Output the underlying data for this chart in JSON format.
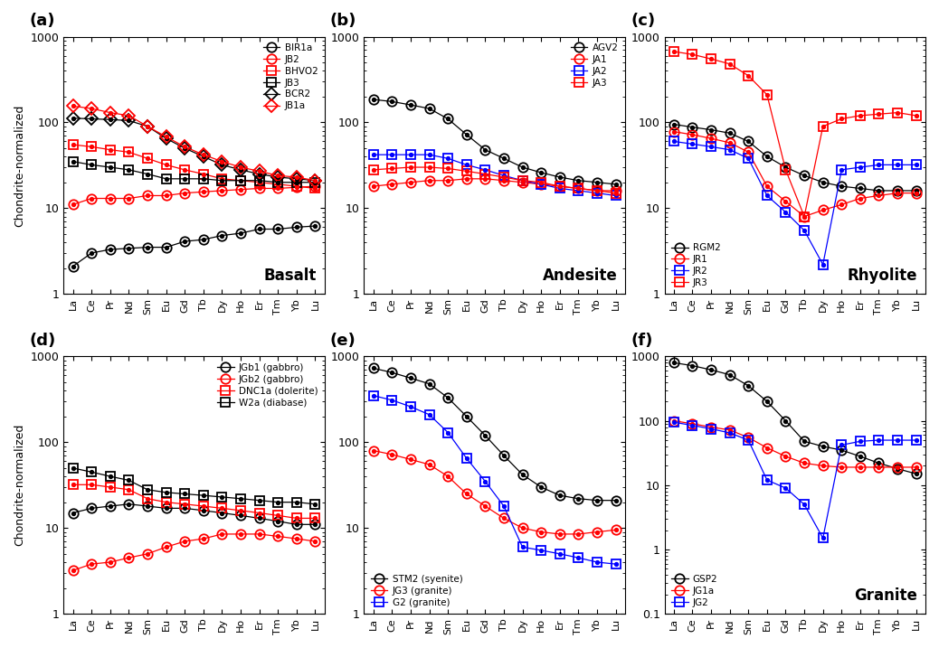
{
  "elements": [
    "La",
    "Ce",
    "Pr",
    "Nd",
    "Sm",
    "Eu",
    "Gd",
    "Tb",
    "Dy",
    "Ho",
    "Er",
    "Tm",
    "Yb",
    "Lu"
  ],
  "panels": {
    "a": {
      "title": "Basalt",
      "label": "(a)",
      "ylim": [
        1,
        1000
      ],
      "legend_loc": "upper right",
      "series": [
        {
          "name": "BIR1a",
          "color": "black",
          "marker": "o",
          "values": [
            2.1,
            3.0,
            3.3,
            3.4,
            3.5,
            3.5,
            4.1,
            4.3,
            4.8,
            5.1,
            5.7,
            5.7,
            6.0,
            6.2
          ]
        },
        {
          "name": "JB2",
          "color": "red",
          "marker": "o",
          "values": [
            11,
            13,
            13,
            13,
            14,
            14,
            15,
            15.5,
            16,
            16.5,
            17,
            17,
            17.5,
            18
          ]
        },
        {
          "name": "BHVO2",
          "color": "red",
          "marker": "s",
          "values": [
            55,
            52,
            48,
            45,
            38,
            32,
            28,
            25,
            22,
            21,
            20,
            19,
            18,
            17
          ]
        },
        {
          "name": "JB3",
          "color": "black",
          "marker": "s",
          "values": [
            35,
            32,
            30,
            28,
            25,
            22,
            22,
            22,
            21,
            21,
            21,
            20,
            20,
            20
          ]
        },
        {
          "name": "BCR2",
          "color": "black",
          "marker": "D",
          "values": [
            112,
            110,
            108,
            105,
            90,
            65,
            50,
            40,
            32,
            28,
            25,
            23,
            22,
            21
          ]
        },
        {
          "name": "JB1a",
          "color": "red",
          "marker": "D",
          "values": [
            155,
            145,
            130,
            120,
            90,
            68,
            52,
            42,
            35,
            30,
            27,
            24,
            23,
            21
          ]
        }
      ]
    },
    "b": {
      "title": "Andesite",
      "label": "(b)",
      "ylim": [
        1,
        1000
      ],
      "legend_loc": "upper right",
      "series": [
        {
          "name": "AGV2",
          "color": "black",
          "marker": "o",
          "values": [
            185,
            175,
            160,
            145,
            110,
            72,
            48,
            38,
            30,
            26,
            23,
            21,
            20,
            19
          ]
        },
        {
          "name": "JA1",
          "color": "red",
          "marker": "o",
          "values": [
            18,
            19,
            20,
            21,
            21,
            22,
            22,
            21,
            20,
            19,
            18,
            17,
            16,
            16
          ]
        },
        {
          "name": "JA2",
          "color": "blue",
          "marker": "s",
          "values": [
            42,
            42,
            42,
            42,
            38,
            32,
            28,
            24,
            21,
            19,
            17,
            16,
            15,
            14
          ]
        },
        {
          "name": "JA3",
          "color": "red",
          "marker": "s",
          "values": [
            28,
            29,
            30,
            30,
            29,
            27,
            25,
            23,
            21,
            20,
            18,
            17,
            16,
            15
          ]
        }
      ]
    },
    "c": {
      "title": "Rhyolite",
      "label": "(c)",
      "ylim": [
        1,
        1000
      ],
      "legend_loc": "lower left",
      "series": [
        {
          "name": "RGM2",
          "color": "black",
          "marker": "o",
          "values": [
            95,
            88,
            82,
            75,
            60,
            40,
            30,
            24,
            20,
            18,
            17,
            16,
            16,
            16
          ]
        },
        {
          "name": "JR1",
          "color": "red",
          "marker": "o",
          "values": [
            78,
            72,
            65,
            58,
            45,
            18,
            12,
            8.0,
            9.5,
            11,
            13,
            14,
            15,
            15
          ]
        },
        {
          "name": "JR2",
          "color": "blue",
          "marker": "s",
          "values": [
            60,
            56,
            52,
            48,
            38,
            14,
            9.0,
            5.5,
            2.2,
            28,
            30,
            32,
            32,
            32
          ]
        },
        {
          "name": "JR3",
          "color": "red",
          "marker": "s",
          "values": [
            670,
            620,
            550,
            480,
            350,
            210,
            28,
            8.0,
            90,
            110,
            120,
            125,
            130,
            120
          ]
        }
      ]
    },
    "d": {
      "title": null,
      "label": "(d)",
      "ylim": [
        1,
        1000
      ],
      "legend_loc": "upper right",
      "series": [
        {
          "name": "JGb1 (gabbro)",
          "color": "black",
          "marker": "o",
          "values": [
            15,
            17,
            18,
            19,
            18,
            17,
            17,
            16,
            15,
            14,
            13,
            12,
            11,
            11
          ]
        },
        {
          "name": "JGb2 (gabbro)",
          "color": "red",
          "marker": "o",
          "values": [
            3.2,
            3.8,
            4.0,
            4.5,
            5.0,
            6.0,
            7.0,
            7.5,
            8.5,
            8.5,
            8.5,
            8.0,
            7.5,
            7.0
          ]
        },
        {
          "name": "DNC1a (dolerite)",
          "color": "red",
          "marker": "s",
          "values": [
            32,
            32,
            30,
            28,
            22,
            20,
            19,
            18,
            17,
            16,
            15,
            14,
            13,
            13
          ]
        },
        {
          "name": "W2a (diabase)",
          "color": "black",
          "marker": "s",
          "values": [
            50,
            45,
            40,
            36,
            28,
            26,
            25,
            24,
            23,
            22,
            21,
            20,
            20,
            19
          ]
        }
      ]
    },
    "e": {
      "title": null,
      "label": "(e)",
      "ylim": [
        1,
        1000
      ],
      "legend_loc": "lower left",
      "series": [
        {
          "name": "STM2 (syenite)",
          "color": "black",
          "marker": "o",
          "values": [
            730,
            650,
            560,
            480,
            330,
            200,
            120,
            70,
            42,
            30,
            24,
            22,
            21,
            21
          ]
        },
        {
          "name": "JG3 (granite)",
          "color": "red",
          "marker": "o",
          "values": [
            80,
            72,
            63,
            55,
            40,
            25,
            18,
            13,
            10,
            9.0,
            8.5,
            8.5,
            9.0,
            9.5
          ]
        },
        {
          "name": "G2 (granite)",
          "color": "blue",
          "marker": "s",
          "values": [
            350,
            310,
            260,
            210,
            130,
            65,
            35,
            18,
            6.0,
            5.5,
            5.0,
            4.5,
            4.0,
            3.8
          ]
        }
      ]
    },
    "f": {
      "title": "Granite",
      "label": "(f)",
      "ylim": [
        0.1,
        1000
      ],
      "legend_loc": "lower left",
      "series": [
        {
          "name": "GSP2",
          "color": "black",
          "marker": "o",
          "values": [
            800,
            720,
            620,
            520,
            350,
            200,
            100,
            48,
            40,
            35,
            28,
            22,
            18,
            15
          ]
        },
        {
          "name": "JG1a",
          "color": "red",
          "marker": "o",
          "values": [
            100,
            90,
            80,
            72,
            55,
            38,
            28,
            22,
            20,
            19,
            19,
            19,
            19,
            19
          ]
        },
        {
          "name": "JG2",
          "color": "blue",
          "marker": "s",
          "values": [
            95,
            85,
            75,
            65,
            50,
            12,
            9.0,
            5.0,
            1.5,
            42,
            48,
            50,
            50,
            50
          ]
        }
      ]
    }
  }
}
